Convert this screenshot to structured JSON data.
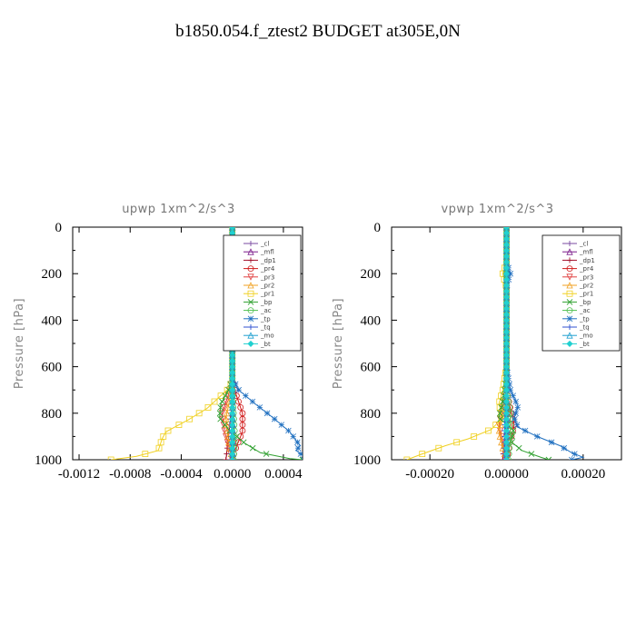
{
  "figure_title": "b1850.054.f_ztest2  BUDGET at305E,0N",
  "chart_data": [
    {
      "type": "line",
      "title": "upwp   1xm^2/s^3",
      "ylabel": "Pressure [hPa]",
      "xlim": [
        -0.00125,
        0.00055
      ],
      "ylim": [
        1000,
        0
      ],
      "xticks": [
        -0.0012,
        -0.0008,
        -0.0004,
        0.0,
        0.0004
      ],
      "xticklabels": [
        "-0.0012",
        "-0.0008",
        "-0.0004",
        "0.0000",
        "0.0004"
      ],
      "yticks": [
        0,
        200,
        400,
        600,
        800,
        1000
      ],
      "legend_position": "top-right",
      "series": [
        {
          "name": "_cl",
          "color": "#7a4aa0",
          "marker": "+",
          "points": [
            [
              0,
              0
            ],
            [
              0,
              400
            ],
            [
              0,
              700
            ],
            [
              0,
              850
            ],
            [
              0,
              1000
            ]
          ]
        },
        {
          "name": "_mfl",
          "color": "#7a1a8a",
          "marker": "triangle",
          "points": [
            [
              0,
              0
            ],
            [
              0,
              400
            ],
            [
              0,
              700
            ],
            [
              5e-06,
              850
            ],
            [
              5e-06,
              1000
            ]
          ]
        },
        {
          "name": "_dp1",
          "color": "#a0102a",
          "marker": "+",
          "points": [
            [
              0,
              0
            ],
            [
              0,
              650
            ],
            [
              1e-05,
              720
            ],
            [
              -1e-05,
              800
            ],
            [
              -3e-05,
              900
            ],
            [
              -5e-05,
              1000
            ]
          ]
        },
        {
          "name": "_pr4",
          "color": "#d01818",
          "marker": "o",
          "points": [
            [
              0,
              0
            ],
            [
              0,
              650
            ],
            [
              3e-05,
              720
            ],
            [
              8e-05,
              800
            ],
            [
              8e-05,
              880
            ],
            [
              2e-05,
              960
            ],
            [
              0,
              1000
            ]
          ]
        },
        {
          "name": "_pr3",
          "color": "#e04040",
          "marker": "v",
          "points": [
            [
              0,
              0
            ],
            [
              0,
              650
            ],
            [
              -3e-05,
              720
            ],
            [
              -8e-05,
              800
            ],
            [
              -6e-05,
              880
            ],
            [
              -2e-05,
              960
            ],
            [
              0,
              1000
            ]
          ]
        },
        {
          "name": "_pr2",
          "color": "#f0a020",
          "marker": "triangle",
          "points": [
            [
              0,
              0
            ],
            [
              0,
              680
            ],
            [
              -2e-05,
              740
            ],
            [
              -5e-05,
              820
            ],
            [
              -3e-05,
              920
            ],
            [
              0,
              1000
            ]
          ]
        },
        {
          "name": "_pr1",
          "color": "#f0d020",
          "marker": "square",
          "points": [
            [
              0,
              0
            ],
            [
              0,
              650
            ],
            [
              -2e-05,
              690
            ],
            [
              -8e-05,
              720
            ],
            [
              -0.0002,
              780
            ],
            [
              -0.00035,
              830
            ],
            [
              -0.00052,
              880
            ],
            [
              -0.00055,
              910
            ],
            [
              -0.00058,
              960
            ],
            [
              -0.00075,
              985
            ],
            [
              -0.00095,
              1000
            ]
          ]
        },
        {
          "name": "_bp",
          "color": "#30a030",
          "marker": "x",
          "points": [
            [
              0,
              0
            ],
            [
              0,
              650
            ],
            [
              -3e-05,
              700
            ],
            [
              -9e-05,
              760
            ],
            [
              -0.0001,
              820
            ],
            [
              -3e-05,
              870
            ],
            [
              0.0001,
              930
            ],
            [
              0.00022,
              970
            ],
            [
              0.00045,
              995
            ],
            [
              0.00055,
              1000
            ]
          ]
        },
        {
          "name": "_ac",
          "color": "#50c050",
          "marker": "o",
          "points": [
            [
              0,
              0
            ],
            [
              0,
              700
            ],
            [
              1e-05,
              800
            ],
            [
              2e-05,
              900
            ],
            [
              1e-05,
              1000
            ]
          ]
        },
        {
          "name": "_tp",
          "color": "#2070c0",
          "marker": "*",
          "points": [
            [
              0,
              0
            ],
            [
              0,
              650
            ],
            [
              5e-05,
              700
            ],
            [
              0.00018,
              760
            ],
            [
              0.00032,
              820
            ],
            [
              0.00045,
              880
            ],
            [
              0.00053,
              940
            ],
            [
              0.0005,
              960
            ],
            [
              0.00057,
              990
            ],
            [
              0.00056,
              1000
            ]
          ]
        },
        {
          "name": "_tq",
          "color": "#3050d0",
          "marker": "+",
          "points": [
            [
              0,
              0
            ],
            [
              0,
              700
            ],
            [
              -5e-06,
              850
            ],
            [
              -1e-05,
              1000
            ]
          ]
        },
        {
          "name": "_mo",
          "color": "#20a0d0",
          "marker": "triangle",
          "points": [
            [
              0,
              0
            ],
            [
              0,
              1000
            ]
          ]
        },
        {
          "name": "_bt",
          "color": "#20d0d0",
          "marker": "diamond",
          "points": [
            [
              0,
              0
            ],
            [
              0,
              1000
            ]
          ]
        }
      ]
    },
    {
      "type": "line",
      "title": "vpwp   1xm^2/s^3",
      "ylabel": "Pressure [hPa]",
      "xlim": [
        -0.0003,
        0.0003
      ],
      "ylim": [
        1000,
        0
      ],
      "xticks": [
        -0.0002,
        0.0,
        0.0002
      ],
      "xticklabels": [
        "-0.00020",
        "0.00000",
        "0.00020"
      ],
      "yticks": [
        0,
        200,
        400,
        600,
        800,
        1000
      ],
      "legend_position": "top-right",
      "series": [
        {
          "name": "_cl",
          "color": "#7a4aa0",
          "marker": "+",
          "points": [
            [
              0,
              0
            ],
            [
              0,
              400
            ],
            [
              0,
              700
            ],
            [
              0,
              850
            ],
            [
              0,
              1000
            ]
          ]
        },
        {
          "name": "_mfl",
          "color": "#7a1a8a",
          "marker": "triangle",
          "points": [
            [
              0,
              0
            ],
            [
              0,
              400
            ],
            [
              0,
              700
            ],
            [
              2e-06,
              850
            ],
            [
              2e-06,
              1000
            ]
          ]
        },
        {
          "name": "_dp1",
          "color": "#a0102a",
          "marker": "+",
          "points": [
            [
              0,
              0
            ],
            [
              0,
              700
            ],
            [
              5e-06,
              800
            ],
            [
              -5e-06,
              900
            ],
            [
              -1e-05,
              1000
            ]
          ]
        },
        {
          "name": "_pr4",
          "color": "#d01818",
          "marker": "o",
          "points": [
            [
              0,
              0
            ],
            [
              0,
              700
            ],
            [
              1e-05,
              780
            ],
            [
              2e-05,
              850
            ],
            [
              1e-05,
              920
            ],
            [
              0,
              1000
            ]
          ]
        },
        {
          "name": "_pr3",
          "color": "#e04040",
          "marker": "v",
          "points": [
            [
              0,
              0
            ],
            [
              0,
              700
            ],
            [
              -1e-05,
              780
            ],
            [
              -2e-05,
              850
            ],
            [
              -1e-05,
              920
            ],
            [
              0,
              1000
            ]
          ]
        },
        {
          "name": "_pr2",
          "color": "#f0a020",
          "marker": "triangle",
          "points": [
            [
              0,
              0
            ],
            [
              0,
              750
            ],
            [
              -1e-05,
              820
            ],
            [
              -2e-05,
              880
            ],
            [
              -1e-05,
              950
            ],
            [
              0,
              1000
            ]
          ]
        },
        {
          "name": "_pr1",
          "color": "#f0d020",
          "marker": "square",
          "points": [
            [
              0,
              0
            ],
            [
              0,
              150
            ],
            [
              -1e-05,
              200
            ],
            [
              0,
              260
            ],
            [
              0,
              600
            ],
            [
              -1e-05,
              700
            ],
            [
              -2e-05,
              760
            ],
            [
              -1e-05,
              820
            ],
            [
              -4e-05,
              870
            ],
            [
              -0.0001,
              910
            ],
            [
              -0.00016,
              940
            ],
            [
              -0.00022,
              975
            ],
            [
              -0.00026,
              1000
            ]
          ]
        },
        {
          "name": "_bp",
          "color": "#30a030",
          "marker": "x",
          "points": [
            [
              0,
              0
            ],
            [
              0,
              650
            ],
            [
              -1e-05,
              750
            ],
            [
              -2e-05,
              820
            ],
            [
              1e-05,
              860
            ],
            [
              2e-05,
              880
            ],
            [
              1e-05,
              920
            ],
            [
              4e-05,
              960
            ],
            [
              9e-05,
              990
            ],
            [
              0.00011,
              1000
            ]
          ]
        },
        {
          "name": "_ac",
          "color": "#50c050",
          "marker": "o",
          "points": [
            [
              0,
              0
            ],
            [
              0,
              700
            ],
            [
              1e-05,
              800
            ],
            [
              1e-05,
              900
            ],
            [
              5e-06,
              1000
            ]
          ]
        },
        {
          "name": "_tp",
          "color": "#2070c0",
          "marker": "*",
          "points": [
            [
              0,
              0
            ],
            [
              0,
              150
            ],
            [
              1e-05,
              200
            ],
            [
              0,
              260
            ],
            [
              0,
              600
            ],
            [
              1e-05,
              700
            ],
            [
              3e-05,
              770
            ],
            [
              2e-05,
              820
            ],
            [
              3e-05,
              860
            ],
            [
              8e-05,
              900
            ],
            [
              0.00014,
              940
            ],
            [
              0.00017,
              970
            ],
            [
              0.0002,
              990
            ],
            [
              0.00017,
              1000
            ]
          ]
        },
        {
          "name": "_tq",
          "color": "#3050d0",
          "marker": "+",
          "points": [
            [
              0,
              0
            ],
            [
              0,
              700
            ],
            [
              -5e-06,
              850
            ],
            [
              -5e-06,
              1000
            ]
          ]
        },
        {
          "name": "_mo",
          "color": "#20a0d0",
          "marker": "triangle",
          "points": [
            [
              0,
              0
            ],
            [
              0,
              1000
            ]
          ]
        },
        {
          "name": "_bt",
          "color": "#20d0d0",
          "marker": "diamond",
          "points": [
            [
              0,
              0
            ],
            [
              0,
              1000
            ]
          ]
        }
      ]
    }
  ]
}
